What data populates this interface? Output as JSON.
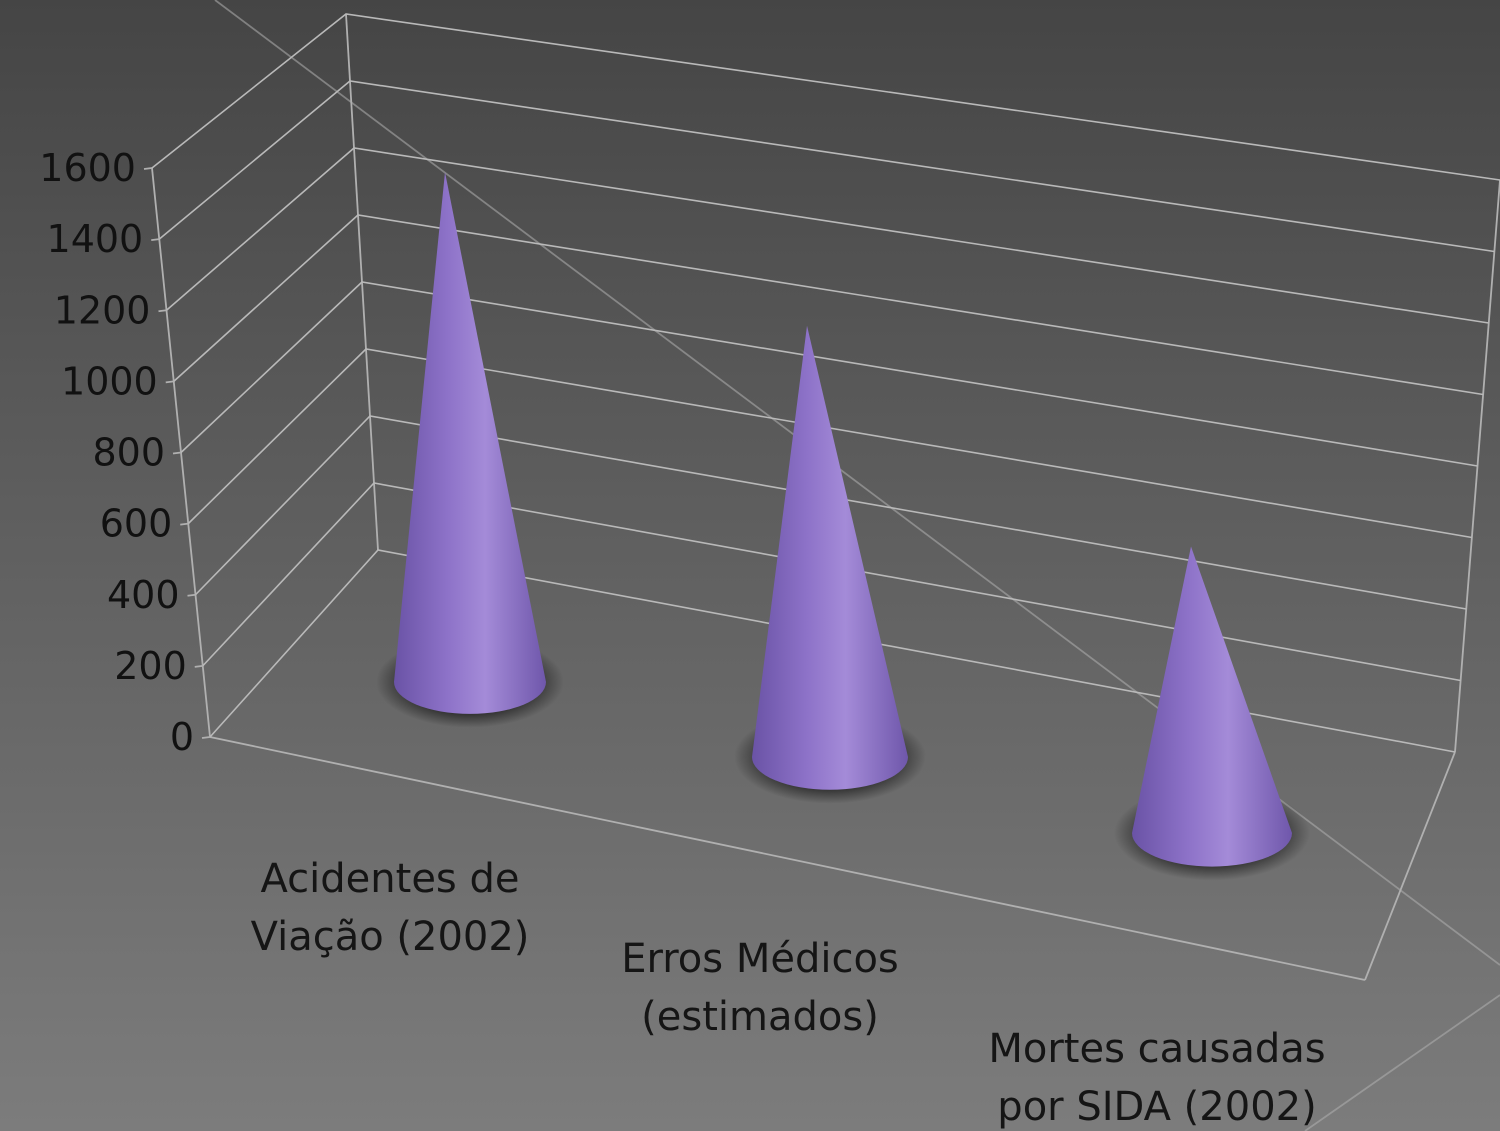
{
  "chart_data": {
    "type": "bar",
    "style": "3d-cone",
    "categories": [
      [
        "Acidentes de",
        "Viação (2002)"
      ],
      [
        "Erros Médicos",
        "(estimados)"
      ],
      [
        "Mortes causadas",
        "por SIDA (2002)"
      ]
    ],
    "values": [
      1470,
      1150,
      700
    ],
    "yticks": [
      "0",
      "200",
      "400",
      "600",
      "800",
      "1000",
      "1200",
      "1400",
      "1600"
    ],
    "ylim": [
      0,
      1600
    ],
    "grid": true,
    "legend": "none",
    "colors": {
      "cone_base": "#8a70c4",
      "cone_highlight": "#a68ed8",
      "cone_shadow": "#5f4a98",
      "grid": "#b9b9b9",
      "text": "#111111"
    }
  }
}
